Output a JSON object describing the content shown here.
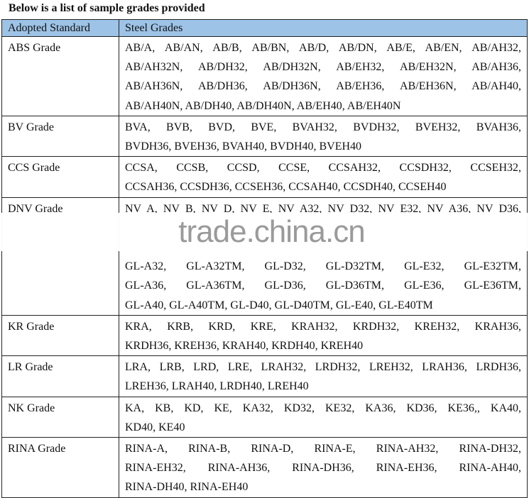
{
  "title": "Below is a list of sample grades provided",
  "headers": {
    "standard": "Adopted Standard",
    "grades": "Steel Grades"
  },
  "rows": [
    {
      "standard": "ABS Grade",
      "lines": [
        "AB/A, AB/AN, AB/B, AB/BN, AB/D, AB/DN, AB/E, AB/EN, AB/AH32,",
        "AB/AH32N, AB/DH32, AB/DH32N, AB/EH32, AB/EH32N, AB/AH36,",
        "AB/AH36N, AB/DH36, AB/DH36N, AB/EH36, AB/EH36N, AB/AH40,",
        "AB/AH40N, AB/DH40, AB/DH40N, AB/EH40, AB/EH40N"
      ]
    },
    {
      "standard": "BV Grade",
      "lines": [
        "BVA, BVB, BVD, BVE, BVAH32, BVDH32, BVEH32, BVAH36,",
        "BVDH36, BVEH36, BVAH40, BVDH40, BVEH40"
      ]
    },
    {
      "standard": "CCS Grade",
      "lines": [
        "CCSA, CCSB, CCSD, CCSE, CCSAH32, CCSDH32, CCSEH32,",
        "CCSAH36, CCSDH36, CCSEH36, CCSAH40, CCSDH40, CCSEH40"
      ]
    },
    {
      "standard": "DNV Grade",
      "lines": [
        "NV A, NV B, NV D, NV E, NV A32, NV D32, NV E32, NV A36, NV D36,",
        "",
        "",
        "GL-A32, GL-A32TM, GL-D32, GL-D32TM, GL-E32, GL-E32TM,",
        "GL-A36, GL-A36TM, GL-D36, GL-D36TM, GL-E36, GL-E36TM,",
        "GL-A40, GL-A40TM, GL-D40, GL-D40TM, GL-E40, GL-E40TM"
      ]
    },
    {
      "standard": "KR Grade",
      "lines": [
        "KRA, KRB, KRD, KRE, KRAH32, KRDH32, KREH32, KRAH36,",
        "KRDH36, KREH36, KRAH40, KRDH40, KREH40"
      ]
    },
    {
      "standard": "LR Grade",
      "lines": [
        "LRA, LRB, LRD, LRE, LRAH32, LRDH32, LREH32, LRAH36, LRDH36,",
        "LREH36, LRAH40, LRDH40, LREH40"
      ]
    },
    {
      "standard": "NK Grade",
      "lines": [
        "KA, KB, KD, KE, KA32, KD32, KE32, KA36, KD36, KE36,, KA40,",
        "KD40, KE40"
      ]
    },
    {
      "standard": "RINA Grade",
      "lines": [
        "RINA-A, RINA-B, RINA-D, RINA-E, RINA-AH32, RINA-DH32,",
        "RINA-EH32, RINA-AH36, RINA-DH36, RINA-EH36, RINA-AH40,",
        "RINA-DH40, RINA-EH40"
      ]
    }
  ],
  "watermark": "trade.china.cn",
  "colors": {
    "header_bg": "#9dc3e6"
  }
}
